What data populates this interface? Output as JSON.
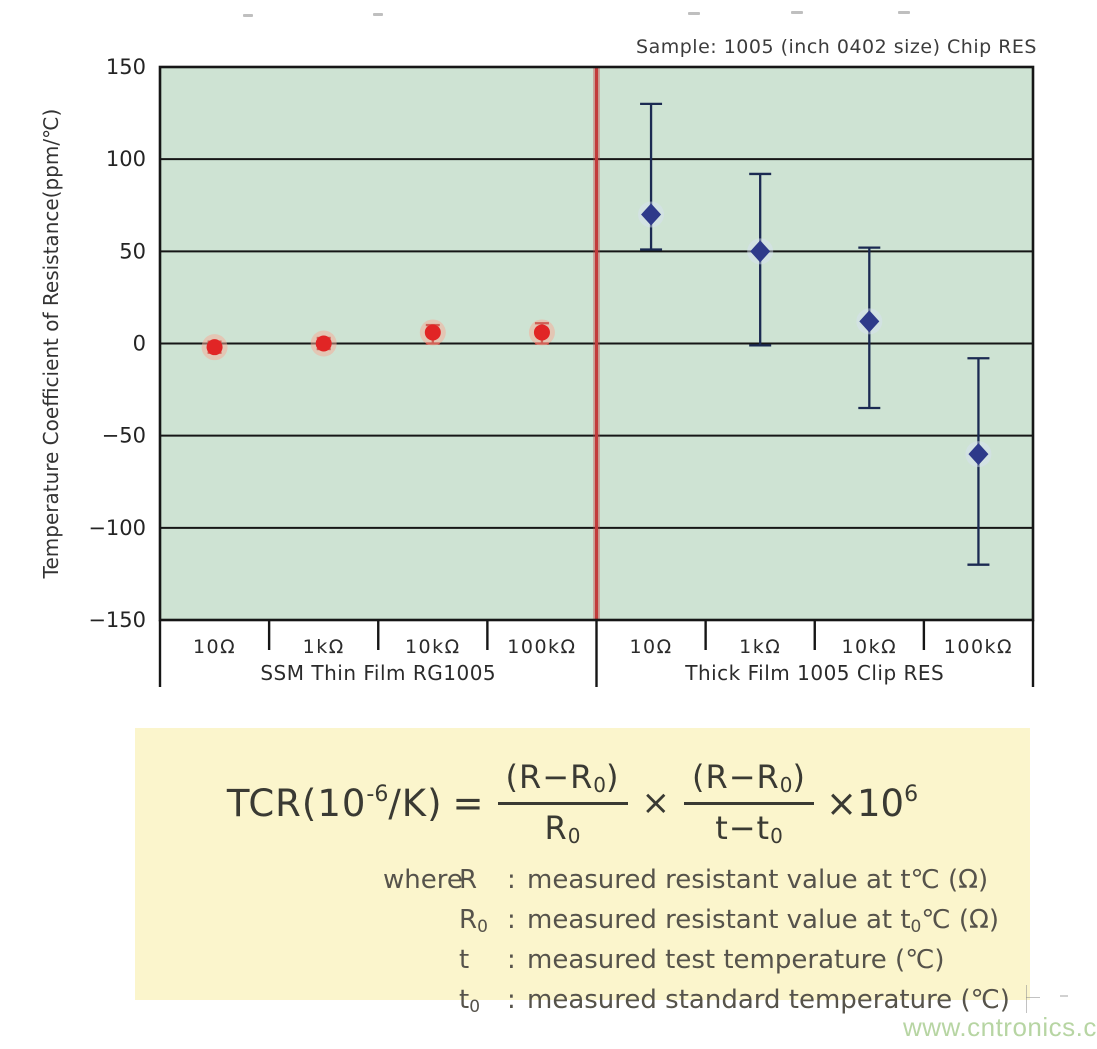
{
  "header": {
    "sample_label": "Sample: 1005 (inch 0402 size) Chip RES"
  },
  "chart_data": {
    "type": "scatter",
    "title": "",
    "xlabel": "",
    "ylabel": "Temperature Coefficient of Resistance(ppm/℃)",
    "ylim": [
      -150,
      150
    ],
    "yticks": [
      150,
      100,
      50,
      0,
      -50,
      -100,
      -150
    ],
    "ytick_labels": [
      "150",
      "100",
      "50",
      "0",
      "−50",
      "−100",
      "−150"
    ],
    "grid": true,
    "legend_position": "none",
    "plot_bg_color": "#cee3d3",
    "grid_color": "#161616",
    "divider_color": "#c23b3b",
    "groups": [
      {
        "label": "SSM Thin Film RG1005",
        "marker": "circle",
        "marker_color": "#e12525",
        "halo_color": "rgba(247,170,150,0.5)",
        "error_color": "#a81616",
        "categories": [
          "10Ω",
          "1kΩ",
          "10kΩ",
          "100kΩ"
        ],
        "values": [
          -2,
          0,
          6,
          6
        ],
        "err_low": [
          -5,
          -3,
          0,
          0
        ],
        "err_high": [
          1,
          3,
          10,
          11
        ]
      },
      {
        "label": "Thick Film 1005 Clip RES",
        "marker": "diamond",
        "marker_color": "#2e3a8a",
        "halo_color": "rgba(215,224,245,0.45)",
        "error_color": "#1b2a52",
        "categories": [
          "10Ω",
          "1kΩ",
          "10kΩ",
          "100kΩ"
        ],
        "values": [
          70,
          50,
          12,
          -60
        ],
        "err_low": [
          51,
          -1,
          -35,
          -120
        ],
        "err_high": [
          130,
          92,
          52,
          -8
        ]
      }
    ]
  },
  "formula": {
    "lhs": "TCR(10",
    "lhs_exp": "-6",
    "lhs_rest": "/K)",
    "eq": "=",
    "frac1_num_main": "(R−R",
    "frac1_num_sub": "0",
    "frac1_num_close": ")",
    "frac1_den_main": "R",
    "frac1_den_sub": "0",
    "times": "×",
    "frac2_num_main": "(R−R",
    "frac2_num_sub": "0",
    "frac2_num_close": ")",
    "frac2_den_main": "t−t",
    "frac2_den_sub": "0",
    "mult": "×10",
    "mult_exp": "6"
  },
  "where": {
    "label": "where",
    "rows": [
      {
        "sym": "R",
        "sym_sub": "",
        "colon": ":",
        "text_pre": "measured resistant value at t",
        "text_sub": "",
        "text_post": "℃ (Ω)"
      },
      {
        "sym": "R",
        "sym_sub": "0",
        "colon": ":",
        "text_pre": "measured resistant value at t",
        "text_sub": "0",
        "text_post": "℃ (Ω)"
      },
      {
        "sym": "t",
        "sym_sub": "",
        "colon": ":",
        "text_pre": "measured test temperature (℃)",
        "text_sub": "",
        "text_post": ""
      },
      {
        "sym": "t",
        "sym_sub": "0",
        "colon": ":",
        "text_pre": "measured standard temperature (℃)",
        "text_sub": "",
        "text_post": ""
      }
    ]
  },
  "footer": {
    "watermark": "www.cntronics.com"
  }
}
